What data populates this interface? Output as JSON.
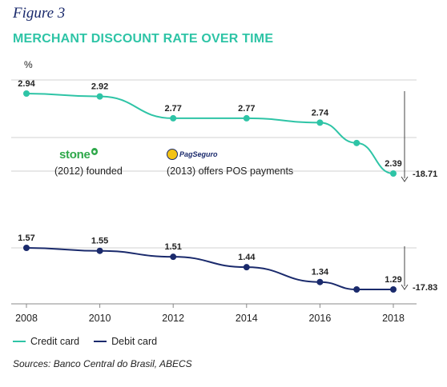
{
  "figure_label": "Figure 3",
  "title": "MERCHANT DISCOUNT RATE OVER TIME",
  "unit_label": "%",
  "colors": {
    "credit": "#2ec4a6",
    "debit": "#1a2a6c",
    "title": "#2ec4a6",
    "figure": "#1a2a6c",
    "grid": "#d0d0d0"
  },
  "events": [
    {
      "logo": "stone",
      "logo_text": "stone",
      "text": "(2012) founded"
    },
    {
      "logo": "pagseguro",
      "logo_text": "PagSeguro",
      "text": "(2013) offers POS payments"
    }
  ],
  "legend": [
    {
      "label": "Credit card",
      "series": "credit"
    },
    {
      "label": "Debit card",
      "series": "debit"
    }
  ],
  "source": "Sources: Banco Central do Brasil, ABECS",
  "chart_data": {
    "type": "line",
    "x_ticks": [
      2008,
      2010,
      2012,
      2014,
      2016,
      2018
    ],
    "xlim": [
      2008,
      2018.4
    ],
    "series": [
      {
        "name": "Credit card",
        "key": "credit",
        "x": [
          2008,
          2010,
          2012,
          2014,
          2016,
          2017,
          2018
        ],
        "y": [
          2.94,
          2.92,
          2.77,
          2.77,
          2.74,
          2.6,
          2.39
        ],
        "labels": [
          "2.94",
          "2.92",
          "2.77",
          "2.77",
          "2.74",
          "",
          "2.39"
        ],
        "change_label": "-18.71"
      },
      {
        "name": "Debit card",
        "key": "debit",
        "x": [
          2008,
          2010,
          2012,
          2014,
          2016,
          2017,
          2018
        ],
        "y": [
          1.57,
          1.55,
          1.51,
          1.44,
          1.34,
          1.29,
          1.29
        ],
        "labels": [
          "1.57",
          "1.55",
          "1.51",
          "1.44",
          "1.34",
          "",
          "1.29"
        ],
        "change_label": "-17.83"
      }
    ],
    "grid": true,
    "legend_position": "bottom-left"
  }
}
